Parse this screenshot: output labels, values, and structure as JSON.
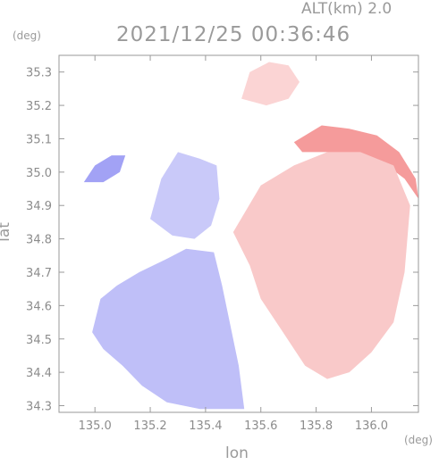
{
  "header": {
    "altitude": "ALT(km) 2.0",
    "timestamp": "2021/12/25 00:36:46"
  },
  "colors": {
    "frame": "#9a9a9a",
    "receding": "#f07070",
    "approaching": "#7070f0"
  },
  "chart_data": {
    "type": "heatmap",
    "title": "2021/12/25 00:36:46",
    "subtitle": "ALT(km) 2.0",
    "xlabel": "lon",
    "ylabel": "lat",
    "x_unit": "(deg)",
    "y_unit": "(deg)",
    "xlim": [
      134.87,
      136.17
    ],
    "ylim": [
      34.28,
      35.35
    ],
    "x_ticks": [
      135.0,
      135.2,
      135.4,
      135.6,
      135.8,
      136.0
    ],
    "x_tick_labels": [
      "135.0",
      "135.2",
      "135.4",
      "135.6",
      "135.8",
      "136.0"
    ],
    "y_ticks": [
      34.3,
      34.4,
      34.5,
      34.6,
      34.7,
      34.8,
      34.9,
      35.0,
      35.1,
      35.2,
      35.3
    ],
    "y_tick_labels": [
      "34.3",
      "34.4",
      "34.5",
      "34.6",
      "34.7",
      "34.8",
      "34.9",
      "35.0",
      "35.1",
      "35.2",
      "35.3"
    ],
    "grid": false,
    "colormap": "blue (approaching) to red (receding)",
    "regions": [
      {
        "id": "main-echo",
        "sign": 0,
        "polygon": [
          [
            135.02,
            34.62
          ],
          [
            135.08,
            34.66
          ],
          [
            135.16,
            34.7
          ],
          [
            135.26,
            34.74
          ],
          [
            135.36,
            34.8
          ],
          [
            135.46,
            34.86
          ],
          [
            135.55,
            34.93
          ],
          [
            135.64,
            34.98
          ],
          [
            135.72,
            35.02
          ],
          [
            135.8,
            35.06
          ],
          [
            135.88,
            35.09
          ],
          [
            135.96,
            35.1
          ],
          [
            136.05,
            35.08
          ],
          [
            136.13,
            35.04
          ],
          [
            136.17,
            34.96
          ],
          [
            136.17,
            34.7
          ],
          [
            136.14,
            34.58
          ],
          [
            136.08,
            34.47
          ],
          [
            136.0,
            34.4
          ],
          [
            135.92,
            34.35
          ],
          [
            135.83,
            34.31
          ],
          [
            135.74,
            34.29
          ],
          [
            135.62,
            34.29
          ],
          [
            135.5,
            34.29
          ],
          [
            135.38,
            34.29
          ],
          [
            135.26,
            34.31
          ],
          [
            135.17,
            34.36
          ],
          [
            135.1,
            34.42
          ],
          [
            135.03,
            34.47
          ],
          [
            134.99,
            34.52
          ]
        ]
      },
      {
        "id": "neg-main",
        "sign": -0.45,
        "polygon": [
          [
            135.02,
            34.62
          ],
          [
            135.08,
            34.66
          ],
          [
            135.16,
            34.7
          ],
          [
            135.26,
            34.74
          ],
          [
            135.33,
            34.77
          ],
          [
            135.43,
            34.76
          ],
          [
            135.46,
            34.66
          ],
          [
            135.49,
            34.54
          ],
          [
            135.52,
            34.42
          ],
          [
            135.54,
            34.29
          ],
          [
            135.38,
            34.29
          ],
          [
            135.26,
            34.31
          ],
          [
            135.17,
            34.36
          ],
          [
            135.1,
            34.42
          ],
          [
            135.03,
            34.47
          ],
          [
            134.99,
            34.52
          ]
        ]
      },
      {
        "id": "neg-north",
        "sign": -0.38,
        "polygon": [
          [
            135.2,
            34.86
          ],
          [
            135.24,
            34.98
          ],
          [
            135.3,
            35.06
          ],
          [
            135.38,
            35.04
          ],
          [
            135.44,
            35.02
          ],
          [
            135.45,
            34.92
          ],
          [
            135.42,
            34.84
          ],
          [
            135.36,
            34.8
          ],
          [
            135.28,
            34.81
          ]
        ]
      },
      {
        "id": "neg-west-patch",
        "sign": -0.65,
        "polygon": [
          [
            134.96,
            34.97
          ],
          [
            135.0,
            35.02
          ],
          [
            135.06,
            35.05
          ],
          [
            135.11,
            35.05
          ],
          [
            135.09,
            35.0
          ],
          [
            135.03,
            34.97
          ]
        ]
      },
      {
        "id": "pos-north-band",
        "sign": 0.7,
        "polygon": [
          [
            135.72,
            35.09
          ],
          [
            135.82,
            35.14
          ],
          [
            135.92,
            35.13
          ],
          [
            136.02,
            35.11
          ],
          [
            136.1,
            35.06
          ],
          [
            136.16,
            34.98
          ],
          [
            136.17,
            34.92
          ],
          [
            136.12,
            34.98
          ],
          [
            136.04,
            35.03
          ],
          [
            135.94,
            35.05
          ],
          [
            135.84,
            35.06
          ],
          [
            135.75,
            35.06
          ]
        ]
      },
      {
        "id": "pos-far-north",
        "sign": 0.3,
        "polygon": [
          [
            135.53,
            35.22
          ],
          [
            135.56,
            35.3
          ],
          [
            135.63,
            35.33
          ],
          [
            135.7,
            35.32
          ],
          [
            135.74,
            35.27
          ],
          [
            135.7,
            35.22
          ],
          [
            135.62,
            35.2
          ]
        ]
      },
      {
        "id": "pos-core",
        "sign": 0.38,
        "polygon": [
          [
            135.6,
            34.96
          ],
          [
            135.72,
            35.02
          ],
          [
            135.84,
            35.06
          ],
          [
            135.96,
            35.06
          ],
          [
            136.08,
            35.02
          ],
          [
            136.14,
            34.9
          ],
          [
            136.12,
            34.7
          ],
          [
            136.08,
            34.55
          ],
          [
            136.0,
            34.46
          ],
          [
            135.92,
            34.4
          ],
          [
            135.84,
            34.38
          ],
          [
            135.76,
            34.42
          ],
          [
            135.68,
            34.52
          ],
          [
            135.6,
            34.62
          ],
          [
            135.56,
            34.72
          ],
          [
            135.5,
            34.82
          ]
        ]
      }
    ]
  }
}
